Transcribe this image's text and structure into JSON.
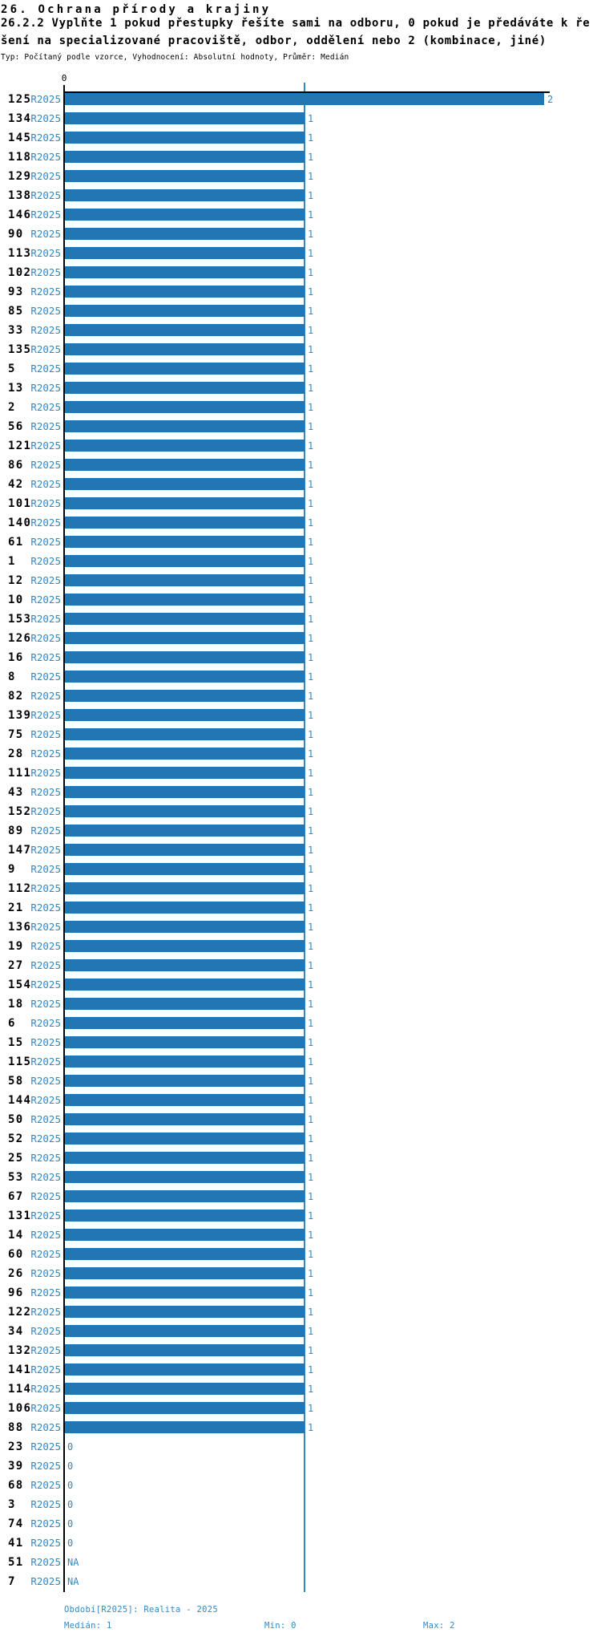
{
  "header": {
    "title": "26. Ochrana přírody a krajiny",
    "question_line1": "26.2.2 Vyplňte 1 pokud přestupky řešíte sami na odboru, 0 pokud je předáváte k ře",
    "question_line2": "šení na specializované pracoviště, odbor, oddělení nebo 2 (kombinace, jiné)",
    "meta": "Typ: Počítaný podle vzorce, Vyhodnocení: Absolutní hodnoty, Průměr: Medián"
  },
  "chart_data": {
    "type": "bar",
    "orientation": "horizontal",
    "series_label": "R2025",
    "xlim": [
      0,
      2
    ],
    "x_axis_tick_label": "0",
    "gridline_value": 1,
    "bar_color": "#2077b4",
    "text_blue": "#3089c8",
    "rows": [
      {
        "id": "125",
        "value": 2
      },
      {
        "id": "134",
        "value": 1
      },
      {
        "id": "145",
        "value": 1
      },
      {
        "id": "118",
        "value": 1
      },
      {
        "id": "129",
        "value": 1
      },
      {
        "id": "138",
        "value": 1
      },
      {
        "id": "146",
        "value": 1
      },
      {
        "id": "90",
        "value": 1
      },
      {
        "id": "113",
        "value": 1
      },
      {
        "id": "102",
        "value": 1
      },
      {
        "id": "93",
        "value": 1
      },
      {
        "id": "85",
        "value": 1
      },
      {
        "id": "33",
        "value": 1
      },
      {
        "id": "135",
        "value": 1
      },
      {
        "id": "5",
        "value": 1
      },
      {
        "id": "13",
        "value": 1
      },
      {
        "id": "2",
        "value": 1
      },
      {
        "id": "56",
        "value": 1
      },
      {
        "id": "121",
        "value": 1
      },
      {
        "id": "86",
        "value": 1
      },
      {
        "id": "42",
        "value": 1
      },
      {
        "id": "101",
        "value": 1
      },
      {
        "id": "140",
        "value": 1
      },
      {
        "id": "61",
        "value": 1
      },
      {
        "id": "1",
        "value": 1
      },
      {
        "id": "12",
        "value": 1
      },
      {
        "id": "10",
        "value": 1
      },
      {
        "id": "153",
        "value": 1
      },
      {
        "id": "126",
        "value": 1
      },
      {
        "id": "16",
        "value": 1
      },
      {
        "id": "8",
        "value": 1
      },
      {
        "id": "82",
        "value": 1
      },
      {
        "id": "139",
        "value": 1
      },
      {
        "id": "75",
        "value": 1
      },
      {
        "id": "28",
        "value": 1
      },
      {
        "id": "111",
        "value": 1
      },
      {
        "id": "43",
        "value": 1
      },
      {
        "id": "152",
        "value": 1
      },
      {
        "id": "89",
        "value": 1
      },
      {
        "id": "147",
        "value": 1
      },
      {
        "id": "9",
        "value": 1
      },
      {
        "id": "112",
        "value": 1
      },
      {
        "id": "21",
        "value": 1
      },
      {
        "id": "136",
        "value": 1
      },
      {
        "id": "19",
        "value": 1
      },
      {
        "id": "27",
        "value": 1
      },
      {
        "id": "154",
        "value": 1
      },
      {
        "id": "18",
        "value": 1
      },
      {
        "id": "6",
        "value": 1
      },
      {
        "id": "15",
        "value": 1
      },
      {
        "id": "115",
        "value": 1
      },
      {
        "id": "58",
        "value": 1
      },
      {
        "id": "144",
        "value": 1
      },
      {
        "id": "50",
        "value": 1
      },
      {
        "id": "52",
        "value": 1
      },
      {
        "id": "25",
        "value": 1
      },
      {
        "id": "53",
        "value": 1
      },
      {
        "id": "67",
        "value": 1
      },
      {
        "id": "131",
        "value": 1
      },
      {
        "id": "14",
        "value": 1
      },
      {
        "id": "60",
        "value": 1
      },
      {
        "id": "26",
        "value": 1
      },
      {
        "id": "96",
        "value": 1
      },
      {
        "id": "122",
        "value": 1
      },
      {
        "id": "34",
        "value": 1
      },
      {
        "id": "132",
        "value": 1
      },
      {
        "id": "141",
        "value": 1
      },
      {
        "id": "114",
        "value": 1
      },
      {
        "id": "106",
        "value": 1
      },
      {
        "id": "88",
        "value": 1
      },
      {
        "id": "23",
        "value": 0
      },
      {
        "id": "39",
        "value": 0
      },
      {
        "id": "68",
        "value": 0
      },
      {
        "id": "3",
        "value": 0
      },
      {
        "id": "74",
        "value": 0
      },
      {
        "id": "41",
        "value": 0
      },
      {
        "id": "51",
        "value": "NA"
      },
      {
        "id": "7",
        "value": "NA"
      }
    ]
  },
  "footer": {
    "period": "Období[R2025]: Realita - 2025",
    "median": "Medián: 1",
    "min": "Min: 0",
    "max": "Max: 2"
  }
}
